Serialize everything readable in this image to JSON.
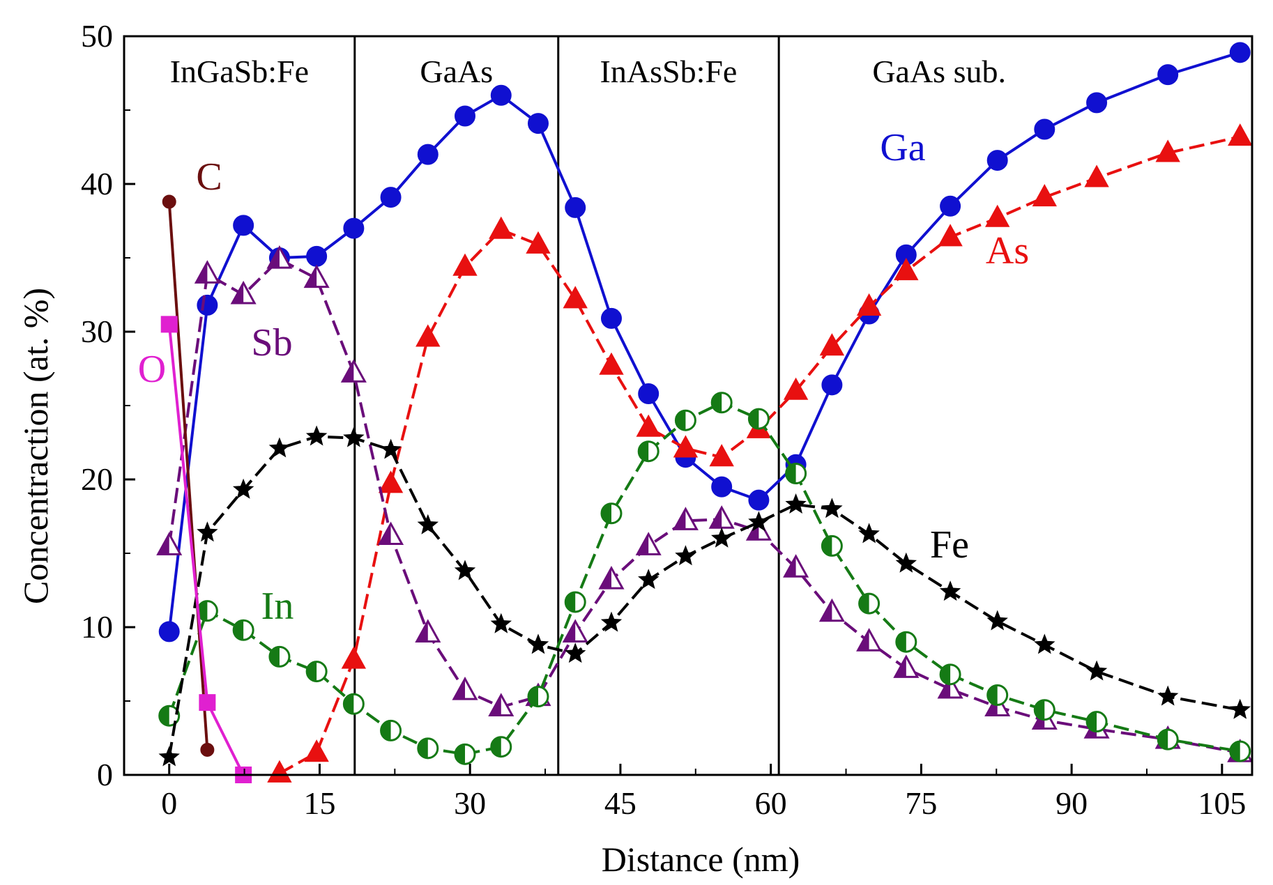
{
  "chart_data": {
    "type": "line",
    "title": "",
    "xlabel": "Distance (nm)",
    "ylabel": "Concentraction (at. %)",
    "xlim": [
      -4.5,
      108
    ],
    "ylim": [
      0,
      50
    ],
    "xticks": [
      0,
      15,
      30,
      45,
      60,
      75,
      90,
      105
    ],
    "yticks": [
      0,
      10,
      20,
      30,
      40,
      50
    ],
    "grid": false,
    "legend": "inline labels",
    "regions": [
      {
        "label": "InGaSb:Fe",
        "x_start": -4.5,
        "x_end": 18.5
      },
      {
        "label": "GaAs",
        "x_start": 18.5,
        "x_end": 38.8
      },
      {
        "label": "InAsSb:Fe",
        "x_start": 38.8,
        "x_end": 60.8
      },
      {
        "label": "GaAs sub.",
        "x_start": 60.8,
        "x_end": 108
      }
    ],
    "boundaries": [
      18.5,
      38.8,
      60.8
    ],
    "series": [
      {
        "name": "Ga",
        "color": "#1010d0",
        "marker": "circle",
        "dash": "solid",
        "x": [
          0,
          3.8,
          7.4,
          11,
          14.7,
          18.4,
          22.1,
          25.8,
          29.5,
          33.1,
          36.8,
          40.5,
          44.1,
          47.8,
          51.5,
          55.1,
          58.8,
          62.5,
          66.1,
          69.8,
          73.5,
          77.9,
          82.6,
          87.3,
          92.5,
          99.6,
          106.8
        ],
        "y": [
          9.7,
          31.8,
          37.2,
          35.0,
          35.1,
          37.0,
          39.1,
          42.0,
          44.6,
          46.0,
          44.1,
          38.4,
          30.9,
          25.8,
          21.5,
          19.5,
          18.6,
          21.0,
          26.4,
          31.2,
          35.2,
          38.5,
          41.6,
          43.7,
          45.5,
          47.4,
          48.9
        ]
      },
      {
        "name": "As",
        "color": "#e81010",
        "marker": "triangle",
        "dash": "dashed",
        "x": [
          11,
          14.7,
          18.4,
          22.1,
          25.8,
          29.5,
          33.1,
          36.8,
          40.5,
          44.1,
          47.8,
          51.5,
          55.1,
          58.8,
          62.5,
          66.1,
          69.8,
          73.5,
          77.9,
          82.6,
          87.3,
          92.5,
          99.6,
          106.8
        ],
        "y": [
          0.1,
          1.5,
          7.8,
          19.7,
          29.6,
          34.4,
          36.9,
          35.9,
          32.2,
          27.7,
          23.5,
          22.1,
          21.5,
          23.4,
          26.0,
          29.0,
          31.7,
          34.1,
          36.4,
          37.7,
          39.1,
          40.4,
          42.1,
          43.2
        ]
      },
      {
        "name": "Sb",
        "color": "#6a0d7a",
        "marker": "half-triangle",
        "dash": "dashed",
        "x": [
          0,
          3.8,
          7.4,
          11,
          14.7,
          18.4,
          22.1,
          25.8,
          29.5,
          33.1,
          36.8,
          40.5,
          44.1,
          47.8,
          51.5,
          55.1,
          58.8,
          62.5,
          66.1,
          69.8,
          73.5,
          77.9,
          82.6,
          87.3,
          92.5,
          99.6,
          106.8
        ],
        "y": [
          15.5,
          33.9,
          32.5,
          34.9,
          33.6,
          27.2,
          16.2,
          9.6,
          5.7,
          4.6,
          5.3,
          9.6,
          13.2,
          15.5,
          17.2,
          17.3,
          16.5,
          14.0,
          11.0,
          9.0,
          7.2,
          5.8,
          4.6,
          3.7,
          3.1,
          2.4,
          1.5
        ]
      },
      {
        "name": "In",
        "color": "#157a15",
        "marker": "half-circle",
        "dash": "dashed",
        "x": [
          0,
          3.8,
          7.4,
          11,
          14.7,
          18.4,
          22.1,
          25.8,
          29.5,
          33.1,
          36.8,
          40.5,
          44.1,
          47.8,
          51.5,
          55.1,
          58.8,
          62.5,
          66.1,
          69.8,
          73.5,
          77.9,
          82.6,
          87.3,
          92.5,
          99.6,
          106.8
        ],
        "y": [
          4.0,
          11.1,
          9.8,
          8.0,
          7.0,
          4.8,
          3.0,
          1.8,
          1.4,
          1.9,
          5.3,
          11.7,
          17.7,
          21.9,
          24.0,
          25.2,
          24.1,
          20.4,
          15.5,
          11.6,
          9.0,
          6.8,
          5.4,
          4.4,
          3.6,
          2.4,
          1.6
        ]
      },
      {
        "name": "Fe",
        "color": "#000000",
        "marker": "star",
        "dash": "dashed",
        "x": [
          0,
          3.8,
          7.4,
          11,
          14.7,
          18.4,
          22.1,
          25.8,
          29.5,
          33.1,
          36.8,
          40.5,
          44.1,
          47.8,
          51.5,
          55.1,
          58.8,
          62.5,
          66.1,
          69.8,
          73.5,
          77.9,
          82.6,
          87.3,
          92.5,
          99.6,
          106.8
        ],
        "y": [
          1.2,
          16.4,
          19.3,
          22.1,
          22.9,
          22.8,
          22.0,
          16.9,
          13.8,
          10.2,
          8.8,
          8.2,
          10.3,
          13.2,
          14.8,
          16.0,
          17.1,
          18.3,
          18.0,
          16.3,
          14.3,
          12.4,
          10.4,
          8.8,
          7.0,
          5.3,
          4.4
        ]
      },
      {
        "name": "C",
        "color": "#6b0f0f",
        "marker": "small-circle",
        "dash": "solid",
        "x": [
          0,
          3.8
        ],
        "y": [
          38.8,
          1.7
        ]
      },
      {
        "name": "O",
        "color": "#e020d0",
        "marker": "square",
        "dash": "solid",
        "x": [
          0,
          3.8,
          7.4
        ],
        "y": [
          30.5,
          4.9,
          0.0
        ]
      }
    ]
  }
}
